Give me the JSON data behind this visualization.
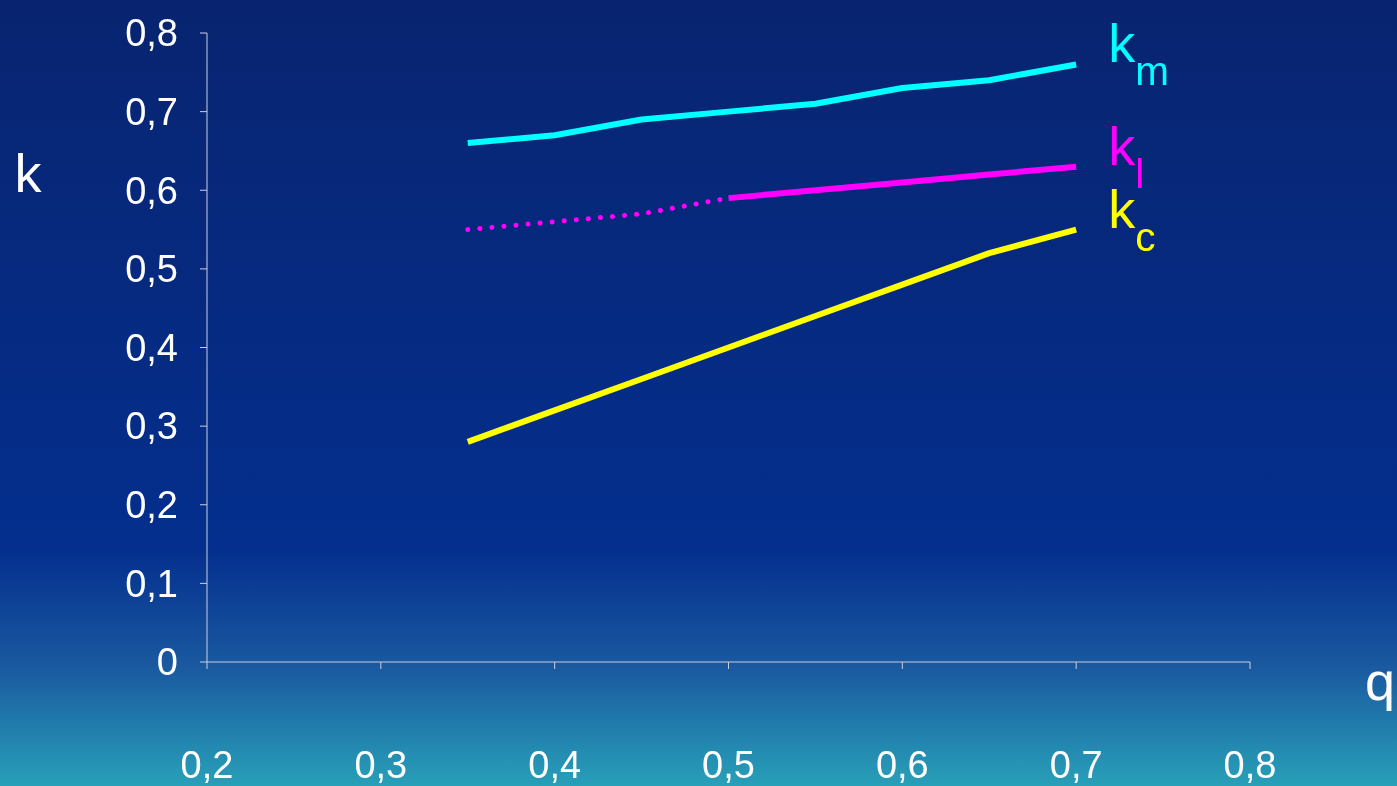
{
  "chart_data": {
    "type": "line",
    "xlabel": "q",
    "ylabel": "k",
    "xlim": [
      0.2,
      0.8
    ],
    "ylim": [
      0,
      0.8
    ],
    "xticks": [
      {
        "value": 0.2,
        "label": "0,2"
      },
      {
        "value": 0.3,
        "label": "0,3"
      },
      {
        "value": 0.4,
        "label": "0,4"
      },
      {
        "value": 0.5,
        "label": "0,5"
      },
      {
        "value": 0.6,
        "label": "0,6"
      },
      {
        "value": 0.7,
        "label": "0,7"
      },
      {
        "value": 0.8,
        "label": "0,8"
      }
    ],
    "yticks": [
      0,
      {
        "value": 0.1,
        "label": "0,1"
      },
      {
        "value": 0.2,
        "label": "0,2"
      },
      {
        "value": 0.3,
        "label": "0,3"
      },
      {
        "value": 0.4,
        "label": "0,4"
      },
      {
        "value": 0.5,
        "label": "0,5"
      },
      {
        "value": 0.6,
        "label": "0,6"
      },
      {
        "value": 0.7,
        "label": "0,7"
      },
      {
        "value": 0.8,
        "label": "0,8"
      }
    ],
    "grid": false,
    "marker": "none",
    "series": [
      {
        "name": "k$_{m}$",
        "color": "#00ffff",
        "line_style": "solid",
        "x": [
          0.35,
          0.4,
          0.45,
          0.5,
          0.55,
          0.6,
          0.65,
          0.7
        ],
        "values": [
          0.66,
          0.67,
          0.69,
          0.7,
          0.71,
          0.73,
          0.74,
          0.76
        ]
      },
      {
        "color": "#ff00ff",
        "line_style": "dotted",
        "x": [
          0.35,
          0.4,
          0.45,
          0.5
        ],
        "values": [
          0.55,
          0.56,
          0.57,
          0.59
        ]
      },
      {
        "name": "k$_{l}$",
        "color": "#ff00ff",
        "line_style": "solid",
        "x": [
          0.5,
          0.55,
          0.6,
          0.65,
          0.7
        ],
        "values": [
          0.59,
          0.6,
          0.61,
          0.62,
          0.63
        ]
      },
      {
        "name": "k$_{c}$",
        "color": "#ffff00",
        "line_style": "solid",
        "x": [
          0.35,
          0.4,
          0.45,
          0.5,
          0.55,
          0.6,
          0.65,
          0.7
        ],
        "values": [
          0.28,
          0.32,
          0.36,
          0.4,
          0.44,
          0.48,
          0.52,
          0.55
        ]
      }
    ]
  }
}
